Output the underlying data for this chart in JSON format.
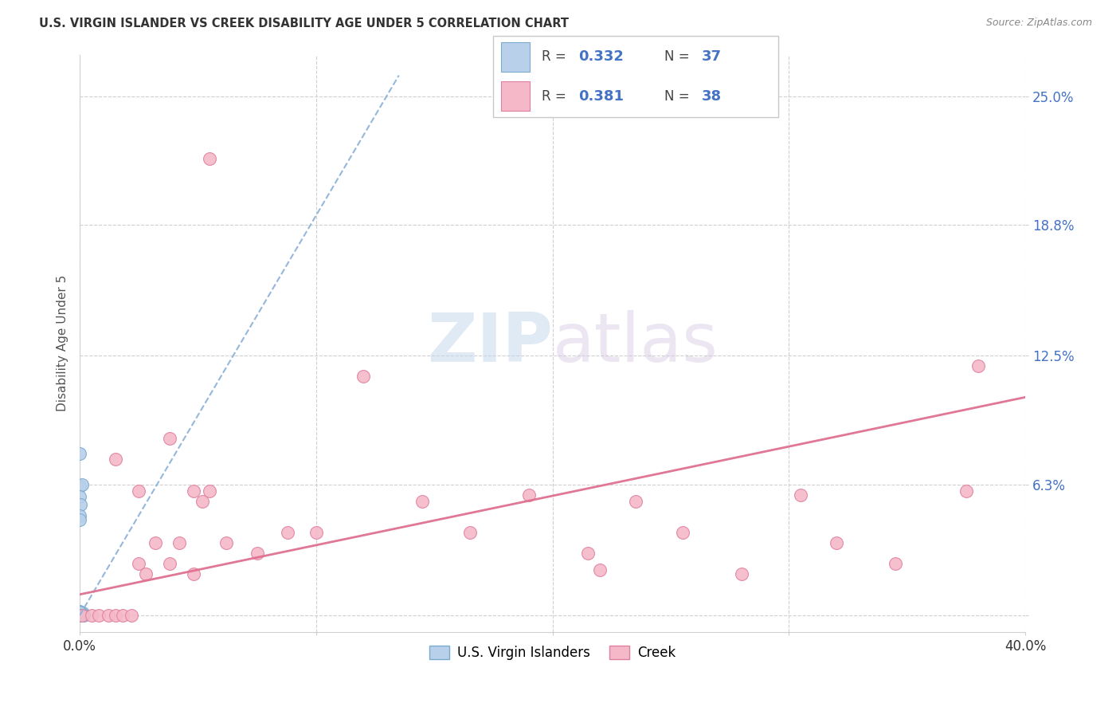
{
  "title": "U.S. VIRGIN ISLANDER VS CREEK DISABILITY AGE UNDER 5 CORRELATION CHART",
  "source": "Source: ZipAtlas.com",
  "ylabel": "Disability Age Under 5",
  "xmin": 0.0,
  "xmax": 0.4,
  "ymin": -0.008,
  "ymax": 0.27,
  "color_blue_fill": "#b8d0ea",
  "color_blue_edge": "#7aaace",
  "color_pink_fill": "#f5b8c8",
  "color_pink_edge": "#e080a0",
  "color_trend_blue": "#8ab0d8",
  "color_trend_pink": "#e07090",
  "color_blue_text": "#4472c4",
  "color_gray_grid": "#d0d0d0",
  "watermark_color": "#d0e4f4",
  "vi_x": [
    0.0,
    0.0,
    0.0,
    0.0,
    0.0,
    0.0,
    0.0,
    0.0,
    0.0,
    0.0,
    0.0,
    0.0,
    0.0,
    0.0,
    0.0,
    0.0,
    0.0,
    0.0,
    0.0,
    0.0,
    0.0,
    0.0,
    0.0,
    0.0,
    0.0,
    0.0,
    0.0,
    0.0,
    0.0,
    0.0,
    0.0,
    0.0,
    0.0,
    0.0,
    0.0,
    0.0,
    0.0
  ],
  "vi_y": [
    0.0,
    0.0,
    0.0,
    0.0,
    0.0,
    0.0,
    0.0,
    0.0,
    0.0,
    0.0,
    0.0,
    0.0,
    0.0,
    0.0,
    0.0,
    0.0,
    0.0,
    0.0,
    0.0,
    0.0,
    0.0,
    0.0,
    0.0,
    0.0,
    0.0,
    0.0,
    0.0,
    0.0,
    0.0,
    0.0,
    0.063,
    0.063,
    0.058,
    0.052,
    0.078,
    0.048,
    0.045
  ],
  "creek_x": [
    0.001,
    0.005,
    0.008,
    0.012,
    0.015,
    0.018,
    0.022,
    0.025,
    0.028,
    0.032,
    0.038,
    0.042,
    0.048,
    0.052,
    0.062,
    0.075,
    0.088,
    0.1,
    0.12,
    0.145,
    0.165,
    0.19,
    0.215,
    0.235,
    0.255,
    0.28,
    0.305,
    0.32,
    0.345,
    0.375,
    0.048,
    0.055,
    0.22,
    0.38,
    0.015,
    0.025,
    0.038,
    0.055
  ],
  "creek_y": [
    0.0,
    0.0,
    0.0,
    0.0,
    0.0,
    0.0,
    0.0,
    0.025,
    0.02,
    0.035,
    0.025,
    0.035,
    0.06,
    0.055,
    0.035,
    0.03,
    0.04,
    0.04,
    0.115,
    0.055,
    0.04,
    0.058,
    0.03,
    0.055,
    0.04,
    0.02,
    0.058,
    0.035,
    0.025,
    0.06,
    0.02,
    0.06,
    0.022,
    0.12,
    0.075,
    0.06,
    0.085,
    0.22
  ],
  "blue_trend_x": [
    0.0,
    0.135
  ],
  "blue_trend_y": [
    0.0,
    0.26
  ],
  "pink_trend_x": [
    0.0,
    0.4
  ],
  "pink_trend_y": [
    0.01,
    0.105
  ]
}
